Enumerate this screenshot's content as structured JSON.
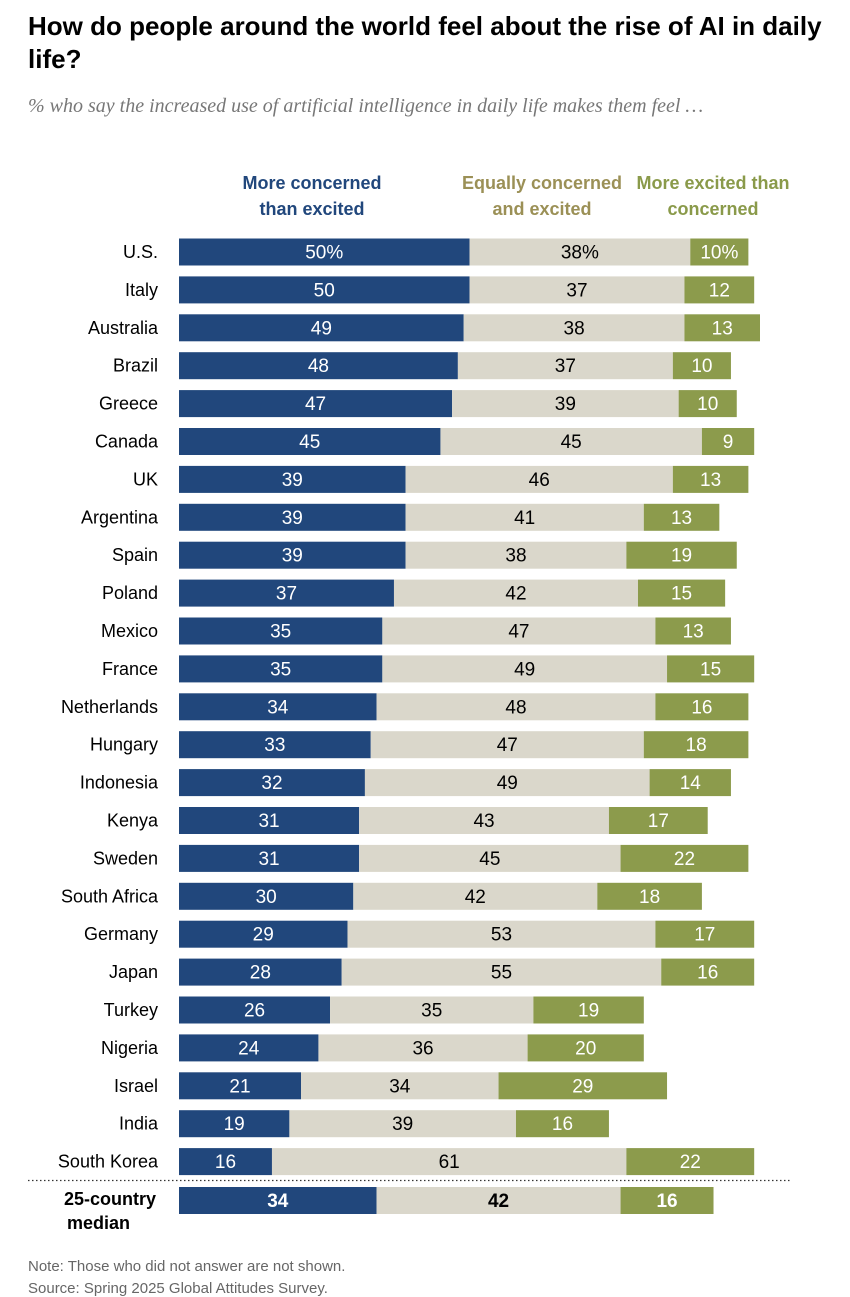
{
  "title": "How do people around the world feel about the rise of AI in daily life?",
  "subtitle": "% who say the increased use of artificial intelligence in daily life makes them feel …",
  "legend": {
    "concerned": "More concerned than excited",
    "equal": "Equally concerned and excited",
    "excited": "More excited than concerned"
  },
  "colors": {
    "concerned": "#21477c",
    "equal": "#dad7cb",
    "excited": "#8c9b4c",
    "legend_equal_text": "#9b9056",
    "legend_excited_text": "#8a9a4a"
  },
  "note": "Note: Those who did not answer are not shown.",
  "source": "Source: Spring 2025 Global Attitudes Survey.",
  "chart_data": {
    "type": "bar",
    "orientation": "horizontal",
    "stacked": true,
    "unit": "%",
    "categories": [
      "U.S.",
      "Italy",
      "Australia",
      "Brazil",
      "Greece",
      "Canada",
      "UK",
      "Argentina",
      "Spain",
      "Poland",
      "Mexico",
      "France",
      "Netherlands",
      "Hungary",
      "Indonesia",
      "Kenya",
      "Sweden",
      "South Africa",
      "Germany",
      "Japan",
      "Turkey",
      "Nigeria",
      "Israel",
      "India",
      "South Korea"
    ],
    "series": [
      {
        "name": "More concerned than excited",
        "values": [
          50,
          50,
          49,
          48,
          47,
          45,
          39,
          39,
          39,
          37,
          35,
          35,
          34,
          33,
          32,
          31,
          31,
          30,
          29,
          28,
          26,
          24,
          21,
          19,
          16
        ]
      },
      {
        "name": "Equally concerned and excited",
        "values": [
          38,
          37,
          38,
          37,
          39,
          45,
          46,
          41,
          38,
          42,
          47,
          49,
          48,
          47,
          49,
          43,
          45,
          42,
          53,
          55,
          35,
          36,
          34,
          39,
          61
        ]
      },
      {
        "name": "More excited than concerned",
        "values": [
          10,
          12,
          13,
          10,
          10,
          9,
          13,
          13,
          19,
          15,
          13,
          15,
          16,
          18,
          14,
          17,
          22,
          18,
          17,
          16,
          19,
          20,
          29,
          16,
          22
        ]
      }
    ],
    "median": {
      "label": "25-country median",
      "values": [
        34,
        42,
        16
      ]
    },
    "xlim": [
      0,
      100
    ]
  }
}
